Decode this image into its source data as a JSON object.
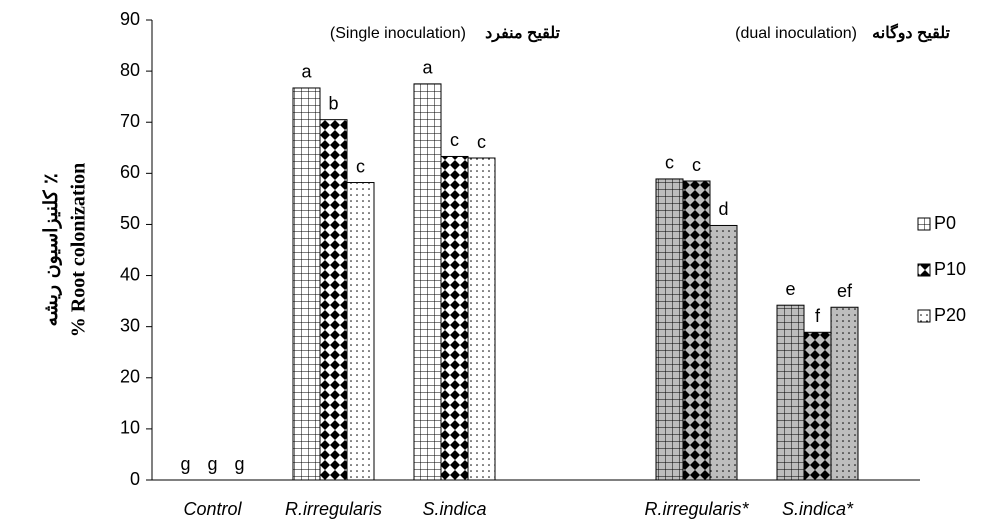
{
  "chart_data": {
    "type": "bar",
    "y_label": [
      "کلنیزاسیون ریشه ٪",
      "% Root colonization"
    ],
    "annotations": [
      "تلقيح منفرد",
      "(Single inoculation)",
      "تلقيح دوگانه",
      "(dual inoculation)"
    ],
    "categories": [
      "Control",
      "R.irregularis",
      "S.indica",
      null,
      "R.irregularis*",
      "S.indica*"
    ],
    "series": [
      {
        "name": "P0",
        "color": "#000000",
        "values": [
          0,
          76.7,
          77.5,
          null,
          58.9,
          34.2
        ],
        "value_labels": [
          "g",
          "a",
          "a",
          null,
          "c",
          "e"
        ]
      },
      {
        "name": "P10",
        "color": "#000000",
        "values": [
          0,
          70.5,
          63.3,
          null,
          58.5,
          28.9
        ],
        "value_labels": [
          "g",
          "b",
          "c",
          null,
          "c",
          "f"
        ]
      },
      {
        "name": "P20",
        "color": "#000000",
        "values": [
          0,
          58.2,
          63,
          null,
          49.8,
          33.8
        ],
        "value_labels": [
          "g",
          "c",
          "c",
          null,
          "d",
          "ef"
        ]
      }
    ],
    "ylim": [
      0,
      90
    ],
    "yticks": [
      0,
      10,
      20,
      30,
      40,
      50,
      60,
      70,
      80,
      90
    ],
    "grid": false,
    "legend": "right"
  }
}
